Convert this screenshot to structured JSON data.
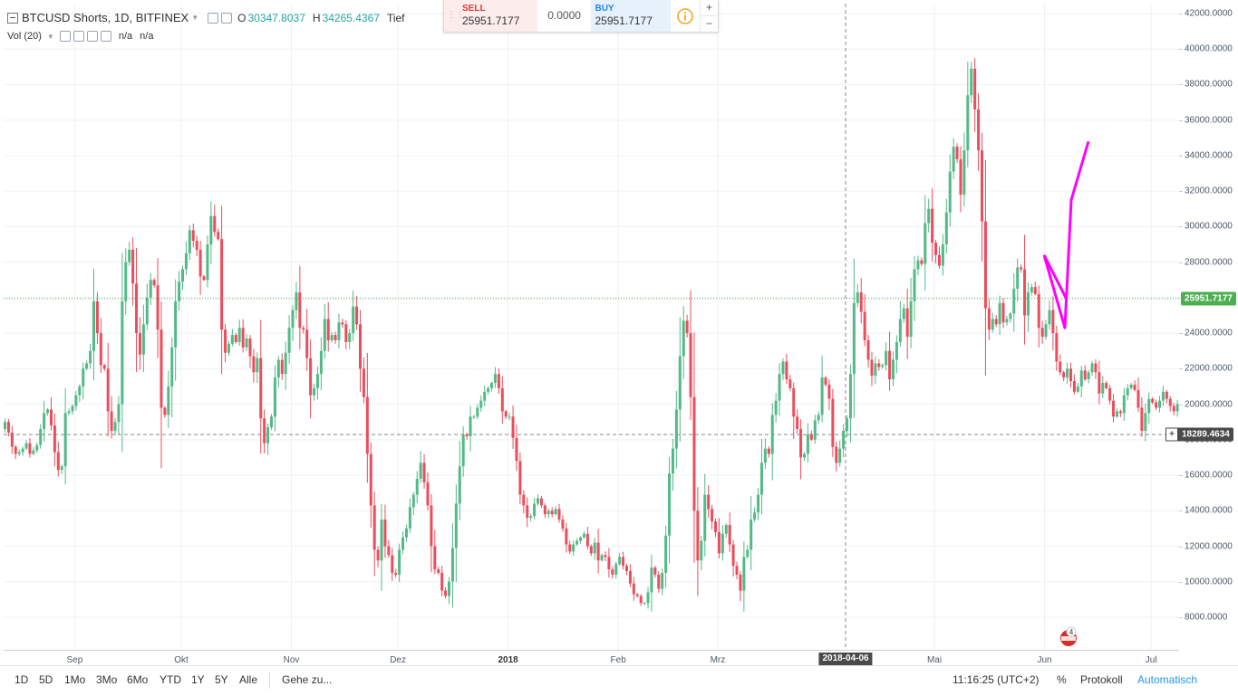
{
  "legend": {
    "symbol": "BTCUSD Shorts, 1D, BITFINEX",
    "open_label": "O",
    "open_value": "30347.8037",
    "high_label": "H",
    "high_value": "34265.4367",
    "low_label": "Tief"
  },
  "volume_legend": {
    "label": "Vol (20)",
    "value1": "n/a",
    "value2": "n/a"
  },
  "trade_panel": {
    "sell_label": "SELL",
    "sell_price": "25951.7177",
    "spread": "0.0000",
    "buy_label": "BUY",
    "buy_price": "25951.7177",
    "plus": "+",
    "minus": "−"
  },
  "price_axis": {
    "ticks": [
      "42000.0000",
      "40000.0000",
      "38000.0000",
      "36000.0000",
      "34000.0000",
      "32000.0000",
      "30000.0000",
      "28000.0000",
      "26000.0000",
      "24000.0000",
      "22000.0000",
      "20000.0000",
      "18000.0000",
      "16000.0000",
      "14000.0000",
      "12000.0000",
      "10000.0000",
      "8000.0000"
    ],
    "last_price": "25951.7177",
    "crosshair_price": "18289.4634",
    "crosshair_plus": "+"
  },
  "time_axis": {
    "labels": [
      "Sep",
      "Okt",
      "Nov",
      "Dez",
      "2018",
      "Feb",
      "Mrz",
      "Mai",
      "Jun",
      "Jul"
    ],
    "crosshair_date": "2018-04-06"
  },
  "bottom_bar": {
    "ranges": [
      "1D",
      "5D",
      "1Mo",
      "3Mo",
      "6Mo",
      "YTD",
      "1Y",
      "5Y",
      "Alle"
    ],
    "goto": "Gehe zu...",
    "clock": "11:16:25 (UTC+2)",
    "percent": "%",
    "log": "Protokoll",
    "auto": "Automatisch"
  },
  "colors": {
    "up": "#53b987",
    "down": "#eb4d5c",
    "drawing": "#ff00ff",
    "last_price": "#4caf50",
    "accent": "#2196f3"
  },
  "flag_badge": "4",
  "chart_data": {
    "type": "candlestick",
    "symbol": "BTCUSD Shorts",
    "timeframe": "1D",
    "exchange": "BITFINEX",
    "y_range": [
      6800,
      42500
    ],
    "last_price": 25951.7177,
    "crosshair_price": 18289.4634,
    "crosshair_date": "2018-04-06",
    "start_date": "2017-08-12",
    "closes": [
      19000,
      18400,
      17600,
      17200,
      17300,
      17500,
      17800,
      17200,
      17400,
      17700,
      18600,
      19500,
      19700,
      18800,
      17300,
      16300,
      16500,
      19500,
      19600,
      19900,
      20500,
      21000,
      22000,
      22300,
      23000,
      25800,
      24000,
      22200,
      22000,
      19600,
      18500,
      19000,
      20000,
      25800,
      28000,
      28700,
      26800,
      24000,
      22800,
      24500,
      26000,
      27000,
      26700,
      24200,
      19800,
      19400,
      21000,
      23200,
      25800,
      26900,
      27600,
      28500,
      29800,
      29200,
      28700,
      27200,
      27000,
      29000,
      30600,
      29700,
      29300,
      24200,
      22900,
      23400,
      23900,
      23500,
      24300,
      23200,
      23700,
      22700,
      21800,
      22600,
      19200,
      17800,
      18700,
      19300,
      21500,
      22500,
      21700,
      22900,
      24300,
      25300,
      26300,
      24300,
      24200,
      22600,
      20500,
      20900,
      21700,
      23000,
      24800,
      23600,
      23900,
      23600,
      24600,
      24500,
      23500,
      24000,
      25500,
      24500,
      22000,
      20400,
      17200,
      14300,
      11800,
      11200,
      13500,
      12000,
      11500,
      10500,
      10400,
      11800,
      12500,
      13000,
      14200,
      14900,
      15800,
      16700,
      15600,
      14300,
      12000,
      10700,
      10500,
      9500,
      9200,
      10000,
      11900,
      14400,
      16500,
      18300,
      18200,
      19300,
      19300,
      19800,
      20200,
      20700,
      20900,
      21200,
      21700,
      20900,
      19600,
      19300,
      19300,
      18100,
      16800,
      14900,
      14300,
      13600,
      13700,
      14400,
      14700,
      14300,
      13800,
      14000,
      13800,
      14100,
      13500,
      13000,
      12100,
      11700,
      12100,
      12300,
      12500,
      12700,
      12000,
      11600,
      12200,
      11200,
      11500,
      11400,
      10700,
      10400,
      11000,
      11400,
      10900,
      10600,
      9900,
      9300,
      9200,
      8800,
      8800,
      9400,
      10800,
      10400,
      9600,
      10500,
      12600,
      16100,
      17500,
      19700,
      22700,
      24700,
      24000,
      20400,
      14000,
      11200,
      12300,
      14900,
      14100,
      13400,
      12800,
      11600,
      12700,
      13200,
      12100,
      10900,
      10400,
      9500,
      11400,
      11800,
      13500,
      13900,
      14900,
      16700,
      17500,
      17200,
      19400,
      20200,
      21700,
      22400,
      21400,
      20900,
      19300,
      18600,
      17000,
      17200,
      18300,
      18000,
      19100,
      19400,
      21500,
      21100,
      20300,
      17600,
      16700,
      17500,
      18500,
      19200,
      21700,
      25700,
      26300,
      25200,
      23600,
      22500,
      21600,
      22300,
      22100,
      22200,
      23000,
      21400,
      22500,
      23500,
      24800,
      25400,
      23800,
      25800,
      27600,
      28100,
      27900,
      30200,
      31000,
      29100,
      28400,
      27800,
      29000,
      30800,
      33100,
      34500,
      33800,
      31800,
      34300,
      37400,
      38900,
      36600,
      34300,
      30300,
      25400,
      24200,
      24800,
      24500,
      25700,
      24600,
      24800,
      25100,
      26500,
      27700,
      27600,
      25000,
      26300,
      26600,
      26200,
      24300,
      23800,
      24500,
      25300,
      24000,
      22400,
      21800,
      21500,
      22000,
      21300,
      20700,
      21000,
      21900,
      21400,
      21800,
      22300,
      21800,
      20600,
      21200,
      20900,
      20200,
      19300,
      19600,
      19500,
      20500,
      20900,
      21100,
      20800,
      19800,
      18500,
      19500,
      20300,
      20100,
      19800,
      20200,
      20700,
      20300,
      19900,
      19600,
      20000,
      20400,
      20500,
      20100,
      19800,
      19500,
      19100,
      19600,
      20200,
      20500,
      20900,
      21300,
      20800,
      20500,
      21000,
      21700,
      22200,
      22600,
      22800,
      22500,
      22700,
      23700,
      24000,
      25300,
      26500,
      28300,
      27700,
      26800,
      26900,
      26100,
      25700,
      25951
    ],
    "hand_drawn_line": [
      [
        26800,
        28400
      ],
      [
        25200,
        24300
      ],
      [
        24200,
        31500
      ],
      [
        27700,
        34800
      ]
    ]
  }
}
